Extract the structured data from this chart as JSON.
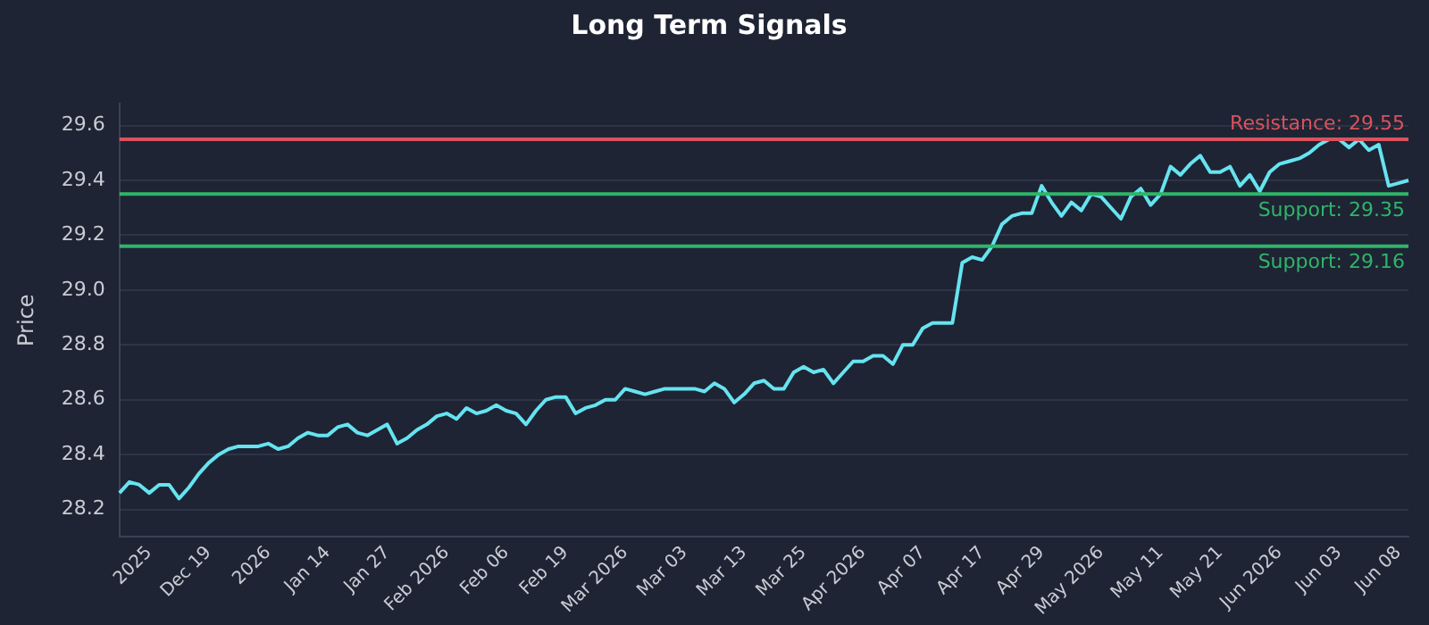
{
  "chart_data": {
    "type": "line",
    "title": "Long Term Signals",
    "ylabel": "Price",
    "categories": [
      null,
      null,
      null,
      "2025",
      null,
      null,
      null,
      null,
      null,
      "Dec 19",
      null,
      null,
      null,
      null,
      null,
      "2026",
      null,
      null,
      null,
      null,
      null,
      "Jan 14",
      null,
      null,
      null,
      null,
      null,
      "Jan 27",
      null,
      null,
      null,
      null,
      null,
      "Feb 2026",
      null,
      null,
      null,
      null,
      null,
      "Feb 06",
      null,
      null,
      null,
      null,
      null,
      "Feb 19",
      null,
      null,
      null,
      null,
      null,
      "Mar 2026",
      null,
      null,
      null,
      null,
      null,
      "Mar 03",
      null,
      null,
      null,
      null,
      null,
      "Mar 13",
      null,
      null,
      null,
      null,
      null,
      "Mar 25",
      null,
      null,
      null,
      null,
      null,
      "Apr 2026",
      null,
      null,
      null,
      null,
      null,
      "Apr 07",
      null,
      null,
      null,
      null,
      null,
      "Apr 17",
      null,
      null,
      null,
      null,
      null,
      "Apr 29",
      null,
      null,
      null,
      null,
      null,
      "May 2026",
      null,
      null,
      null,
      null,
      null,
      "May 11",
      null,
      null,
      null,
      null,
      null,
      "May 21",
      null,
      null,
      null,
      null,
      null,
      "Jun 2026",
      null,
      null,
      null,
      null,
      null,
      "Jun 03",
      null,
      null,
      null,
      null,
      null,
      "Jun 08",
      null
    ],
    "series": [
      {
        "color": "#66e3f0",
        "values": [
          28.26,
          28.3,
          28.29,
          28.26,
          28.29,
          28.29,
          28.24,
          28.28,
          28.33,
          28.37,
          28.4,
          28.42,
          28.43,
          28.43,
          28.43,
          28.44,
          28.42,
          28.43,
          28.46,
          28.48,
          28.47,
          28.47,
          28.5,
          28.51,
          28.48,
          28.47,
          28.49,
          28.51,
          28.44,
          28.46,
          28.49,
          28.51,
          28.54,
          28.55,
          28.53,
          28.57,
          28.55,
          28.56,
          28.58,
          28.56,
          28.55,
          28.51,
          28.56,
          28.6,
          28.61,
          28.61,
          28.55,
          28.57,
          28.58,
          28.6,
          28.6,
          28.64,
          28.63,
          28.62,
          28.63,
          28.64,
          28.64,
          28.64,
          28.64,
          28.63,
          28.66,
          28.64,
          28.59,
          28.62,
          28.66,
          28.67,
          28.64,
          28.64,
          28.7,
          28.72,
          28.7,
          28.71,
          28.66,
          28.7,
          28.74,
          28.74,
          28.76,
          28.76,
          28.73,
          28.8,
          28.8,
          28.86,
          28.88,
          28.88,
          28.88,
          29.1,
          29.12,
          29.11,
          29.16,
          29.24,
          29.27,
          29.28,
          29.28,
          29.38,
          29.32,
          29.27,
          29.32,
          29.29,
          29.35,
          29.34,
          29.3,
          29.26,
          29.34,
          29.37,
          29.31,
          29.35,
          29.45,
          29.42,
          29.46,
          29.49,
          29.43,
          29.43,
          29.45,
          29.38,
          29.42,
          29.36,
          29.43,
          29.46,
          29.47,
          29.48,
          29.5,
          29.53,
          29.55,
          29.55,
          29.52,
          29.55,
          29.51,
          29.53,
          29.38,
          29.39,
          29.4
        ]
      }
    ],
    "ylim": [
      28.1,
      29.68
    ],
    "yticks": [
      28.2,
      28.4,
      28.6,
      28.8,
      {
        "value": 29,
        "label": "29.0"
      },
      29.2,
      29.4,
      29.6
    ],
    "grid": "y",
    "marker": "none",
    "line_style": "solid",
    "legend": false,
    "ref_lines": [
      {
        "axis": "y",
        "value": 29.55,
        "label": "Resistance: 29.55",
        "color": "#d9525e"
      },
      {
        "axis": "y",
        "value": 29.35,
        "label": "Support: 29.35",
        "color": "#2fb56a"
      },
      {
        "axis": "y",
        "value": 29.16,
        "label": "Support: 29.16",
        "color": "#2fb56a"
      }
    ]
  }
}
